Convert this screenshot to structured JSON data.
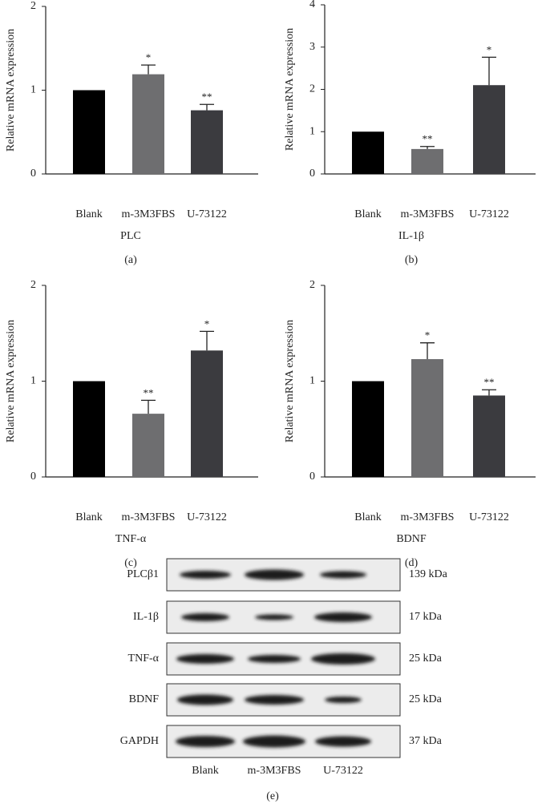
{
  "chart_data": [
    {
      "type": "bar",
      "panel": "(a)",
      "y_label": "Relative mRNA expression",
      "x_label": "PLC",
      "categories": [
        "Blank",
        "m-3M3FBS",
        "U-73122"
      ],
      "values": [
        1,
        1.19,
        0.76
      ],
      "errors": [
        null,
        0.11,
        0.07
      ],
      "annotations": [
        null,
        "*",
        "**"
      ],
      "colors": [
        "#000000",
        "#6e6e70",
        "#3b3b3f"
      ],
      "ylim": [
        0,
        2
      ],
      "yticks": [
        0,
        1,
        2
      ]
    },
    {
      "type": "bar",
      "panel": "(b)",
      "y_label": "Relative mRNA expression",
      "x_label": "IL-1β",
      "categories": [
        "Blank",
        "m-3M3FBS",
        "U-73122"
      ],
      "values": [
        1,
        0.59,
        2.1
      ],
      "errors": [
        null,
        0.06,
        0.66
      ],
      "annotations": [
        null,
        "**",
        "*"
      ],
      "colors": [
        "#000000",
        "#6e6e70",
        "#3b3b3f"
      ],
      "ylim": [
        0,
        4
      ],
      "yticks": [
        0,
        1,
        2,
        3,
        4
      ]
    },
    {
      "type": "bar",
      "panel": "(c)",
      "y_label": "Relative mRNA expression",
      "x_label": "TNF-α",
      "categories": [
        "Blank",
        "m-3M3FBS",
        "U-73122"
      ],
      "values": [
        1,
        0.66,
        1.32
      ],
      "errors": [
        null,
        0.14,
        0.2
      ],
      "annotations": [
        null,
        "**",
        "*"
      ],
      "colors": [
        "#000000",
        "#6e6e70",
        "#3b3b3f"
      ],
      "ylim": [
        0,
        2
      ],
      "yticks": [
        0,
        1,
        2
      ]
    },
    {
      "type": "bar",
      "panel": "(d)",
      "y_label": "Relative mRNA expression",
      "x_label": "BDNF",
      "categories": [
        "Blank",
        "m-3M3FBS",
        "U-73122"
      ],
      "values": [
        1,
        1.23,
        0.85
      ],
      "errors": [
        null,
        0.17,
        0.06
      ],
      "annotations": [
        null,
        "*",
        "**"
      ],
      "colors": [
        "#000000",
        "#6e6e70",
        "#3b3b3f"
      ],
      "ylim": [
        0,
        2
      ],
      "yticks": [
        0,
        1,
        2
      ]
    }
  ],
  "blot": {
    "panel": "(e)",
    "lanes": [
      "Blank",
      "m-3M3FBS",
      "U-73122"
    ],
    "rows": [
      {
        "protein": "PLCβ1",
        "size": "139 kDa"
      },
      {
        "protein": "IL-1β",
        "size": "17 kDa"
      },
      {
        "protein": "TNF-α",
        "size": "25 kDa"
      },
      {
        "protein": "BDNF",
        "size": "25 kDa"
      },
      {
        "protein": "GAPDH",
        "size": "37 kDa"
      }
    ]
  }
}
